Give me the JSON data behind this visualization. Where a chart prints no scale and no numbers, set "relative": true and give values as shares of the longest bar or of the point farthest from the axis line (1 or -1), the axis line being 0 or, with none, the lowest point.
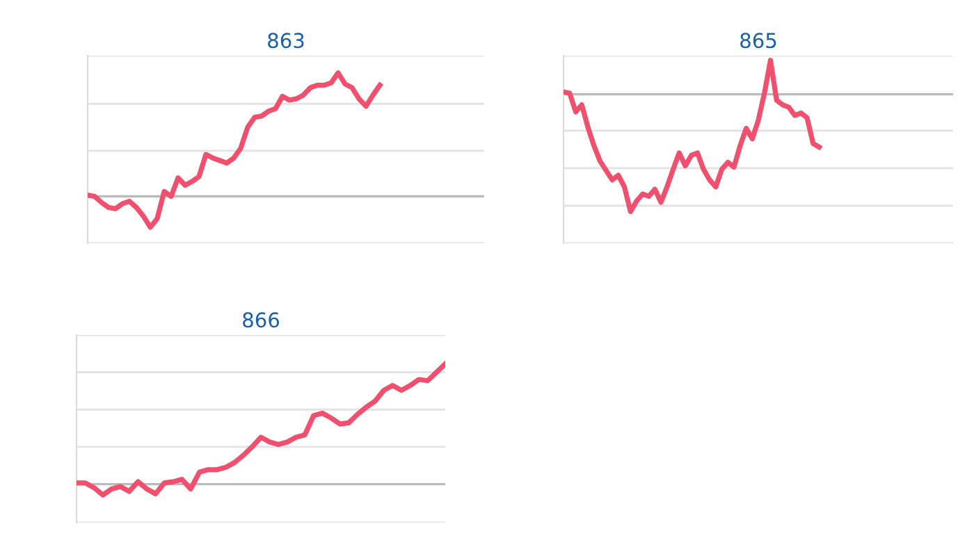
{
  "chart_data": [
    {
      "type": "line",
      "title": "863",
      "relative": true,
      "ref_lines": [
        {
          "axis": "y",
          "value": 1.14,
          "color": "#e3e3e3"
        },
        {
          "axis": "y",
          "value": 0.75,
          "color": "#e3e3e3"
        },
        {
          "axis": "y",
          "value": 0.37,
          "color": "#e3e3e3"
        },
        {
          "axis": "y",
          "value": -0.38,
          "color": "#e3e3e3"
        }
      ],
      "categories": [
        null,
        null,
        null,
        null,
        null,
        null,
        null,
        null,
        null,
        null,
        null,
        null,
        null,
        null,
        null,
        null,
        null,
        null,
        null,
        null,
        null,
        null,
        null,
        null,
        null,
        null,
        null,
        null,
        null,
        null,
        null,
        null,
        null,
        null,
        null,
        null,
        null,
        null,
        null,
        null,
        null,
        null,
        null,
        null,
        null,
        null,
        null,
        null,
        null,
        null,
        null,
        null,
        null,
        null,
        null,
        null,
        null,
        null
      ],
      "series": [
        {
          "color": "#f0506e",
          "values": [
            0.01,
            0,
            -0.05,
            -0.09,
            -0.1,
            -0.06,
            -0.04,
            -0.09,
            -0.16,
            -0.25,
            -0.18,
            0.04,
            0,
            0.15,
            0.09,
            0.12,
            0.16,
            0.34,
            0.31,
            0.29,
            0.27,
            0.31,
            0.39,
            0.56,
            0.64,
            0.65,
            0.69,
            0.71,
            0.81,
            0.78,
            0.79,
            0.82,
            0.88,
            0.9,
            0.9,
            0.92,
            1,
            0.91,
            0.88,
            0.79,
            0.73,
            0.82,
            0.9,
            null,
            null,
            null,
            null,
            null,
            null,
            null,
            null,
            null,
            null,
            null,
            null,
            null,
            null,
            null
          ]
        }
      ]
    },
    {
      "type": "line",
      "title": "865",
      "relative": true,
      "ref_lines": [
        {
          "axis": "y",
          "value": 0.33,
          "color": "#e3e3e3"
        },
        {
          "axis": "y",
          "value": -0.31,
          "color": "#e3e3e3"
        },
        {
          "axis": "y",
          "value": -0.63,
          "color": "#e3e3e3"
        },
        {
          "axis": "y",
          "value": -0.95,
          "color": "#e3e3e3"
        },
        {
          "axis": "y",
          "value": -1.27,
          "color": "#e3e3e3"
        }
      ],
      "categories": [
        null,
        null,
        null,
        null,
        null,
        null,
        null,
        null,
        null,
        null,
        null,
        null,
        null,
        null,
        null,
        null,
        null,
        null,
        null,
        null,
        null,
        null,
        null,
        null,
        null,
        null,
        null,
        null,
        null,
        null,
        null,
        null,
        null,
        null,
        null,
        null,
        null,
        null,
        null,
        null,
        null,
        null,
        null,
        null,
        null,
        null,
        null,
        null,
        null,
        null,
        null,
        null,
        null,
        null,
        null,
        null,
        null,
        null,
        null,
        null,
        null,
        null,
        null,
        null,
        null
      ],
      "series": [
        {
          "color": "#f0506e",
          "values": [
            0.02,
            0.01,
            -0.15,
            -0.09,
            -0.28,
            -0.44,
            -0.57,
            -0.65,
            -0.73,
            -0.69,
            -0.79,
            -1,
            -0.91,
            -0.85,
            -0.87,
            -0.81,
            -0.92,
            -0.79,
            -0.64,
            -0.5,
            -0.61,
            -0.52,
            -0.5,
            -0.64,
            -0.73,
            -0.79,
            -0.64,
            -0.58,
            -0.62,
            -0.44,
            -0.29,
            -0.38,
            -0.22,
            0.01,
            0.29,
            -0.05,
            -0.09,
            -0.11,
            -0.18,
            -0.16,
            -0.2,
            -0.42,
            -0.45,
            null,
            null,
            null,
            null,
            null,
            null,
            null,
            null,
            null,
            null,
            null,
            null,
            null,
            null,
            null,
            null,
            null,
            null,
            null,
            null,
            null,
            null
          ]
        }
      ]
    },
    {
      "type": "line",
      "title": "866",
      "relative": true,
      "ref_lines": [
        {
          "axis": "y",
          "value": 1.24,
          "color": "#e3e3e3"
        },
        {
          "axis": "y",
          "value": 0.93,
          "color": "#e3e3e3"
        },
        {
          "axis": "y",
          "value": 0.62,
          "color": "#e3e3e3"
        },
        {
          "axis": "y",
          "value": 0.31,
          "color": "#e3e3e3"
        },
        {
          "axis": "y",
          "value": -0.32,
          "color": "#e3e3e3"
        }
      ],
      "categories": [
        null,
        null,
        null,
        null,
        null,
        null,
        null,
        null,
        null,
        null,
        null,
        null,
        null,
        null,
        null,
        null,
        null,
        null,
        null,
        null,
        null,
        null,
        null,
        null,
        null,
        null,
        null,
        null,
        null,
        null,
        null,
        null,
        null,
        null,
        null,
        null,
        null,
        null,
        null,
        null,
        null,
        null,
        null
      ],
      "series": [
        {
          "color": "#f0506e",
          "values": [
            0.01,
            0.01,
            -0.03,
            -0.09,
            -0.04,
            -0.02,
            -0.06,
            0.02,
            -0.04,
            -0.08,
            0.01,
            0.02,
            0.04,
            -0.04,
            0.1,
            0.12,
            0.12,
            0.14,
            0.18,
            0.24,
            0.31,
            0.39,
            0.35,
            0.33,
            0.35,
            0.39,
            0.41,
            0.57,
            0.59,
            0.55,
            0.5,
            0.51,
            0.58,
            0.64,
            0.69,
            0.78,
            0.82,
            0.78,
            0.82,
            0.87,
            0.86,
            0.93,
            1
          ]
        }
      ]
    }
  ]
}
